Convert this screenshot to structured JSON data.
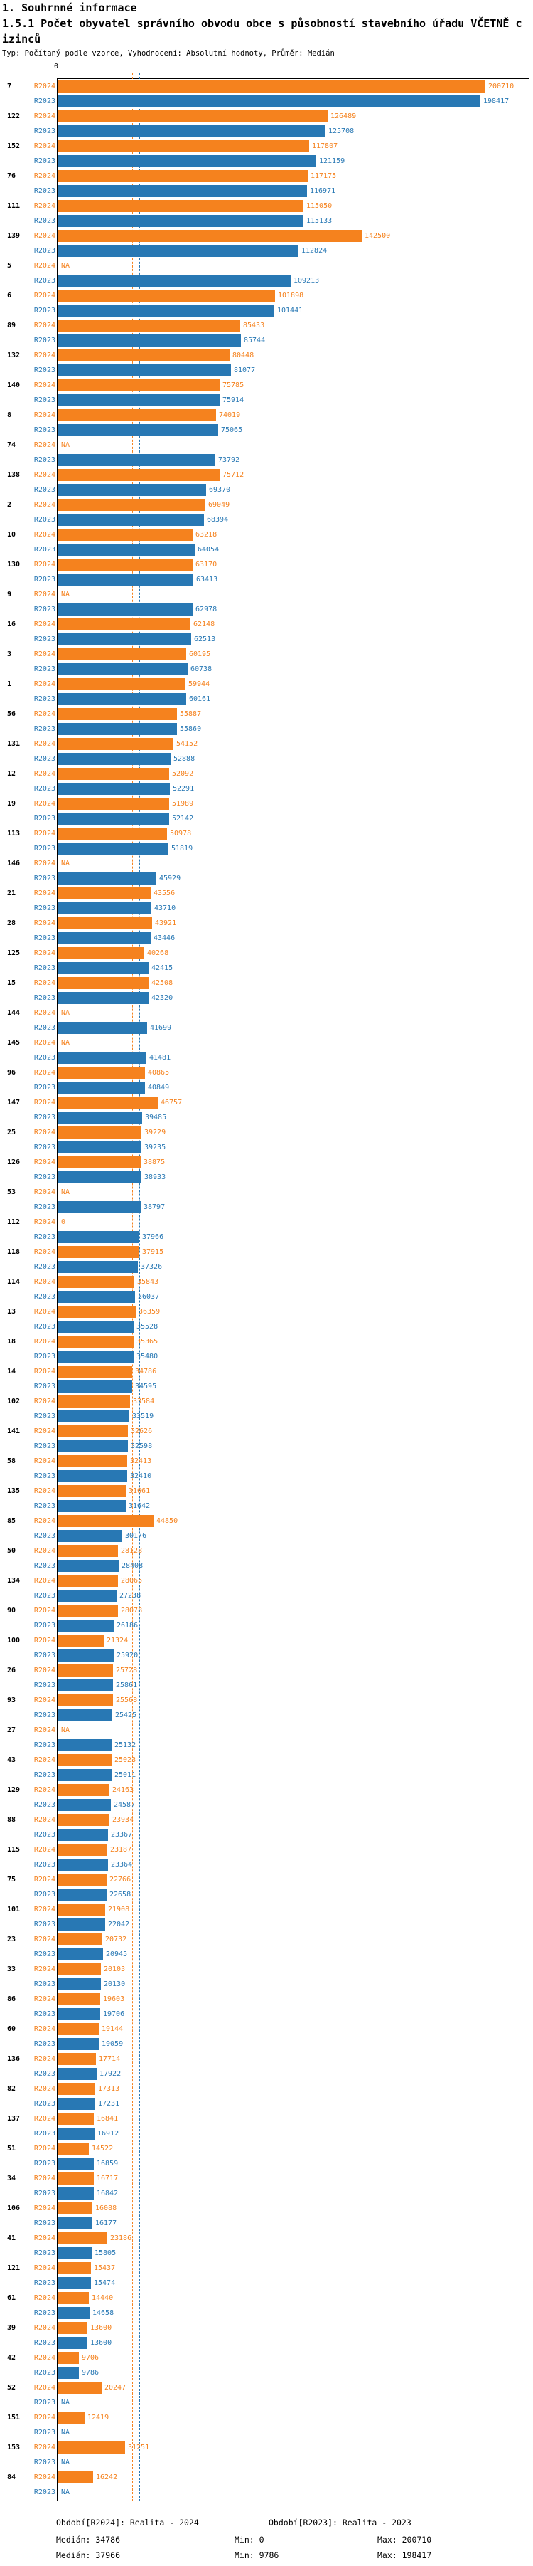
{
  "heading": "1. Souhrnné informace",
  "title": "1.5.1 Počet obyvatel správního obvodu obce s působností stavebního úřadu VČETNĚ cizinců",
  "subtitle": "Typ: Počítaný podle vzorce, Vyhodnocení: Absolutní hodnoty, Průměr: Medián",
  "colors": {
    "r2024": "#F5821E",
    "r2023": "#2878B4",
    "axis": "#000000"
  },
  "axis": {
    "zero_label": "0"
  },
  "na_label": "NA",
  "footer": {
    "legend_r2024": "Období[R2024]: Realita - 2024",
    "legend_r2023": "Období[R2023]: Realita - 2023",
    "median_r2024": "Medián: 34786",
    "min_r2024": "Min: 0",
    "max_r2024": "Max: 200710",
    "median_r2023": "Medián: 37966",
    "min_r2023": "Min: 9786",
    "max_r2023": "Max: 198417"
  },
  "chart_data": {
    "type": "bar",
    "orientation": "horizontal",
    "title": "1.5.1 Počet obyvatel správního obvodu obce s působností stavebního úřadu VČETNĚ cizinců",
    "xlim": [
      0,
      200710
    ],
    "x_axis_ticks": [
      "0"
    ],
    "grid": false,
    "legend_position": "bottom",
    "series_names": [
      "R2024",
      "R2023"
    ],
    "medians": {
      "R2024": 34786,
      "R2023": 37966
    },
    "mins": {
      "R2024": 0,
      "R2023": 9786
    },
    "maxs": {
      "R2024": 200710,
      "R2023": 198417
    },
    "rows": [
      {
        "id": "7",
        "R2024": 200710,
        "R2023": 198417
      },
      {
        "id": "122",
        "R2024": 126489,
        "R2023": 125708
      },
      {
        "id": "152",
        "R2024": 117807,
        "R2023": 121159
      },
      {
        "id": "76",
        "R2024": 117175,
        "R2023": 116971
      },
      {
        "id": "111",
        "R2024": 115050,
        "R2023": 115133
      },
      {
        "id": "139",
        "R2024": 142500,
        "R2023": 112824
      },
      {
        "id": "5",
        "R2024": null,
        "R2023": 109213
      },
      {
        "id": "6",
        "R2024": 101898,
        "R2023": 101441
      },
      {
        "id": "89",
        "R2024": 85433,
        "R2023": 85744
      },
      {
        "id": "132",
        "R2024": 80448,
        "R2023": 81077
      },
      {
        "id": "140",
        "R2024": 75785,
        "R2023": 75914
      },
      {
        "id": "8",
        "R2024": 74019,
        "R2023": 75065
      },
      {
        "id": "74",
        "R2024": null,
        "R2023": 73792
      },
      {
        "id": "138",
        "R2024": 75712,
        "R2023": 69370
      },
      {
        "id": "2",
        "R2024": 69049,
        "R2023": 68394
      },
      {
        "id": "10",
        "R2024": 63218,
        "R2023": 64054
      },
      {
        "id": "130",
        "R2024": 63170,
        "R2023": 63413
      },
      {
        "id": "9",
        "R2024": null,
        "R2023": 62978
      },
      {
        "id": "16",
        "R2024": 62148,
        "R2023": 62513
      },
      {
        "id": "3",
        "R2024": 60195,
        "R2023": 60738
      },
      {
        "id": "1",
        "R2024": 59944,
        "R2023": 60161
      },
      {
        "id": "56",
        "R2024": 55887,
        "R2023": 55860
      },
      {
        "id": "131",
        "R2024": 54152,
        "R2023": 52888
      },
      {
        "id": "12",
        "R2024": 52092,
        "R2023": 52291
      },
      {
        "id": "19",
        "R2024": 51989,
        "R2023": 52142
      },
      {
        "id": "113",
        "R2024": 50978,
        "R2023": 51819
      },
      {
        "id": "146",
        "R2024": null,
        "R2023": 45929
      },
      {
        "id": "21",
        "R2024": 43556,
        "R2023": 43710
      },
      {
        "id": "28",
        "R2024": 43921,
        "R2023": 43446
      },
      {
        "id": "125",
        "R2024": 40268,
        "R2023": 42415
      },
      {
        "id": "15",
        "R2024": 42508,
        "R2023": 42320
      },
      {
        "id": "144",
        "R2024": null,
        "R2023": 41699
      },
      {
        "id": "145",
        "R2024": null,
        "R2023": 41481
      },
      {
        "id": "96",
        "R2024": 40865,
        "R2023": 40849
      },
      {
        "id": "147",
        "R2024": 46757,
        "R2023": 39485
      },
      {
        "id": "25",
        "R2024": 39229,
        "R2023": 39235
      },
      {
        "id": "126",
        "R2024": 38875,
        "R2023": 38933
      },
      {
        "id": "53",
        "R2024": null,
        "R2023": 38797
      },
      {
        "id": "112",
        "R2024": 0,
        "R2023": 37966
      },
      {
        "id": "118",
        "R2024": 37915,
        "R2023": 37326
      },
      {
        "id": "114",
        "R2024": 35843,
        "R2023": 36037
      },
      {
        "id": "13",
        "R2024": 36359,
        "R2023": 35528
      },
      {
        "id": "18",
        "R2024": 35365,
        "R2023": 35480
      },
      {
        "id": "14",
        "R2024": 34786,
        "R2023": 34595
      },
      {
        "id": "102",
        "R2024": 33584,
        "R2023": 33519
      },
      {
        "id": "141",
        "R2024": 32626,
        "R2023": 32598
      },
      {
        "id": "58",
        "R2024": 32413,
        "R2023": 32410
      },
      {
        "id": "135",
        "R2024": 31661,
        "R2023": 31642
      },
      {
        "id": "85",
        "R2024": 44850,
        "R2023": 30176
      },
      {
        "id": "50",
        "R2024": 28128,
        "R2023": 28408
      },
      {
        "id": "134",
        "R2024": 28065,
        "R2023": 27238
      },
      {
        "id": "90",
        "R2024": 28078,
        "R2023": 26186
      },
      {
        "id": "100",
        "R2024": 21324,
        "R2023": 25920
      },
      {
        "id": "26",
        "R2024": 25728,
        "R2023": 25861
      },
      {
        "id": "93",
        "R2024": 25568,
        "R2023": 25425
      },
      {
        "id": "27",
        "R2024": null,
        "R2023": 25132
      },
      {
        "id": "43",
        "R2024": 25023,
        "R2023": 25011
      },
      {
        "id": "129",
        "R2024": 24163,
        "R2023": 24587
      },
      {
        "id": "88",
        "R2024": 23934,
        "R2023": 23367
      },
      {
        "id": "115",
        "R2024": 23187,
        "R2023": 23364
      },
      {
        "id": "75",
        "R2024": 22766,
        "R2023": 22658
      },
      {
        "id": "101",
        "R2024": 21908,
        "R2023": 22042
      },
      {
        "id": "23",
        "R2024": 20732,
        "R2023": 20945
      },
      {
        "id": "33",
        "R2024": 20103,
        "R2023": 20130
      },
      {
        "id": "86",
        "R2024": 19603,
        "R2023": 19706
      },
      {
        "id": "60",
        "R2024": 19144,
        "R2023": 19059
      },
      {
        "id": "136",
        "R2024": 17714,
        "R2023": 17922
      },
      {
        "id": "82",
        "R2024": 17313,
        "R2023": 17231
      },
      {
        "id": "137",
        "R2024": 16841,
        "R2023": 16912
      },
      {
        "id": "51",
        "R2024": 14522,
        "R2023": 16859
      },
      {
        "id": "34",
        "R2024": 16717,
        "R2023": 16842
      },
      {
        "id": "106",
        "R2024": 16088,
        "R2023": 16177
      },
      {
        "id": "41",
        "R2024": 23186,
        "R2023": 15805
      },
      {
        "id": "121",
        "R2024": 15437,
        "R2023": 15474
      },
      {
        "id": "61",
        "R2024": 14440,
        "R2023": 14658
      },
      {
        "id": "39",
        "R2024": 13600,
        "R2023": 13600
      },
      {
        "id": "42",
        "R2024": 9706,
        "R2023": 9786
      },
      {
        "id": "52",
        "R2024": 20247,
        "R2023": null
      },
      {
        "id": "151",
        "R2024": 12419,
        "R2023": null
      },
      {
        "id": "153",
        "R2024": 31251,
        "R2023": null
      },
      {
        "id": "84",
        "R2024": 16242,
        "R2023": null
      }
    ]
  }
}
